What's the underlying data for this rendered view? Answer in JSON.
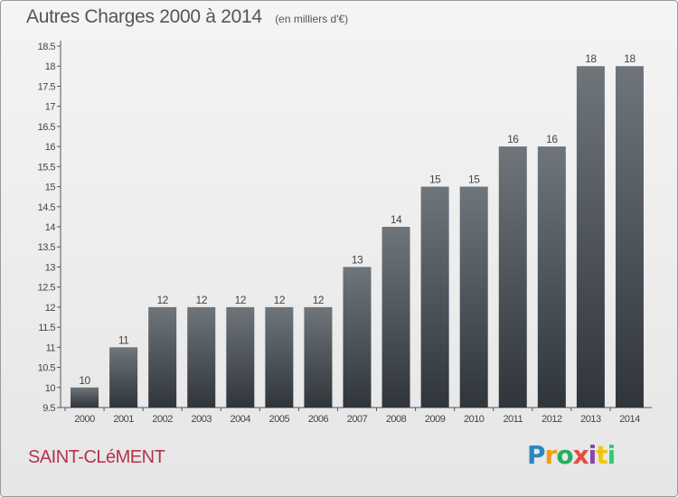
{
  "title": "Autres Charges 2000 à 2014",
  "subtitle": "(en milliers d'€)",
  "commune": "SAINT-CLéMENT",
  "brand": {
    "letters": [
      "P",
      "r",
      "o",
      "x",
      "i",
      "t",
      "i"
    ],
    "colors": [
      "#2e86c1",
      "#f39c12",
      "#27ae60",
      "#e74c3c",
      "#8e44ad",
      "#f1c40f",
      "#2ecc71"
    ]
  },
  "colors": {
    "bar_top": "#6e757b",
    "bar_bottom": "#2f353b",
    "axis": "#555555",
    "text": "#444444",
    "commune": "#b5334a"
  },
  "chart_data": {
    "type": "bar",
    "categories": [
      "2000",
      "2001",
      "2002",
      "2003",
      "2004",
      "2005",
      "2006",
      "2007",
      "2008",
      "2009",
      "2010",
      "2011",
      "2012",
      "2013",
      "2014"
    ],
    "values": [
      10,
      11,
      12,
      12,
      12,
      12,
      12,
      13,
      14,
      15,
      15,
      16,
      16,
      18,
      18
    ],
    "data_labels": [
      "10",
      "11",
      "12",
      "12",
      "12",
      "12",
      "12",
      "13",
      "14",
      "15",
      "15",
      "16",
      "16",
      "18",
      "18"
    ],
    "y_ticks": [
      "9.5",
      "10",
      "10.5",
      "11",
      "11.5",
      "12",
      "12.5",
      "13",
      "13.5",
      "14",
      "14.5",
      "15",
      "15.5",
      "16",
      "16.5",
      "17",
      "17.5",
      "18",
      "18.5"
    ],
    "ylim": [
      9.5,
      18.5
    ],
    "grid": false,
    "legend": "none"
  }
}
